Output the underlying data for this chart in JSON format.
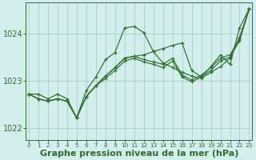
{
  "bg_color": "#d4eeed",
  "grid_color": "#aed4d0",
  "line_color": "#2d6e2d",
  "marker_color": "#2d6e2d",
  "xlabel": "Graphe pression niveau de la mer (hPa)",
  "xlabel_fontsize": 8,
  "yticks": [
    1022,
    1023,
    1024
  ],
  "xticks": [
    0,
    1,
    2,
    3,
    4,
    5,
    6,
    7,
    8,
    9,
    10,
    11,
    12,
    13,
    14,
    15,
    16,
    17,
    18,
    19,
    20,
    21,
    22,
    23
  ],
  "xlim": [
    -0.3,
    23.3
  ],
  "ylim": [
    1021.75,
    1024.65
  ],
  "tick_color": "#2d6e2d",
  "xlabel_color": "#2d6e2d",
  "s1": [
    1022.72,
    1022.72,
    1022.62,
    1022.72,
    1022.62,
    1022.22,
    1022.8,
    1023.08,
    1023.45,
    1023.6,
    1024.12,
    1024.15,
    1024.02,
    1023.62,
    1023.38,
    1023.28,
    1023.18,
    1023.1,
    1023.05,
    1023.18,
    1023.3,
    1023.48,
    1023.92,
    1024.52
  ],
  "s2": [
    1022.72,
    1022.62,
    1022.57,
    1022.62,
    1022.57,
    1022.22,
    1022.67,
    1022.9,
    1023.1,
    1023.28,
    1023.48,
    1023.52,
    1023.55,
    1023.62,
    1023.68,
    1023.75,
    1023.8,
    1023.22,
    1023.08,
    1023.3,
    1023.55,
    1023.35,
    1024.12,
    1024.52
  ],
  "s3": [
    1022.72,
    1022.62,
    1022.57,
    1022.62,
    1022.57,
    1022.22,
    1022.67,
    1022.9,
    1023.1,
    1023.28,
    1023.48,
    1023.52,
    1023.45,
    1023.4,
    1023.35,
    1023.48,
    1023.12,
    1023.02,
    1023.12,
    1023.28,
    1023.48,
    1023.55,
    1023.88,
    1024.52
  ],
  "s4": [
    1022.72,
    1022.62,
    1022.57,
    1022.62,
    1022.57,
    1022.22,
    1022.67,
    1022.9,
    1023.05,
    1023.22,
    1023.42,
    1023.48,
    1023.4,
    1023.35,
    1023.28,
    1023.42,
    1023.08,
    1022.98,
    1023.08,
    1023.22,
    1023.42,
    1023.5,
    1023.85,
    1024.52
  ]
}
